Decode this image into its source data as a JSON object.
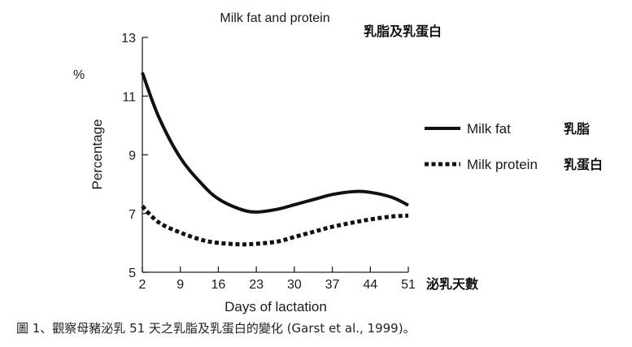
{
  "chart_data": {
    "type": "line",
    "title": "Milk fat and protein",
    "title_zh": "乳脂及乳蛋白",
    "unit_label": "%",
    "xlabel": "Days of lactation",
    "xlabel_zh": "泌乳天數",
    "ylabel": "Percentage",
    "x_ticks": [
      2,
      9,
      16,
      23,
      30,
      37,
      44,
      51
    ],
    "y_ticks": [
      5,
      7,
      9,
      11,
      13
    ],
    "xlim": [
      2,
      51
    ],
    "ylim": [
      5,
      13
    ],
    "grid": false,
    "legend_position": "right",
    "series": [
      {
        "name": "Milk fat",
        "name_zh": "乳脂",
        "line_style": "solid",
        "x": [
          2,
          5,
          9,
          13,
          16,
          20,
          23,
          27,
          30,
          34,
          37,
          41,
          44,
          48,
          51
        ],
        "y": [
          11.8,
          10.3,
          8.9,
          8.0,
          7.5,
          7.15,
          7.05,
          7.15,
          7.3,
          7.5,
          7.65,
          7.75,
          7.72,
          7.55,
          7.28
        ]
      },
      {
        "name": "Milk protein",
        "name_zh": "乳蛋白",
        "line_style": "dotted",
        "x": [
          2,
          5,
          9,
          13,
          16,
          20,
          23,
          27,
          30,
          34,
          37,
          41,
          44,
          48,
          51
        ],
        "y": [
          7.25,
          6.7,
          6.35,
          6.1,
          6.0,
          5.95,
          5.97,
          6.05,
          6.2,
          6.4,
          6.55,
          6.7,
          6.8,
          6.9,
          6.93
        ]
      }
    ]
  },
  "caption": "圖 1、觀察母豬泌乳 51 天之乳脂及乳蛋白的變化  (Garst et al., 1999)。"
}
